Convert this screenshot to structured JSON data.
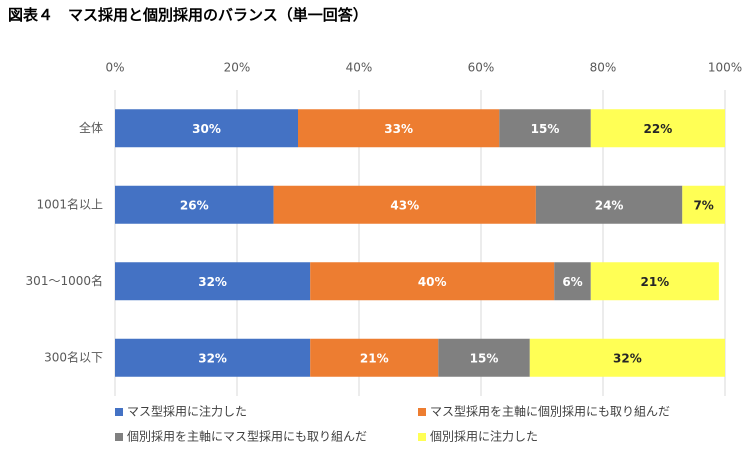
{
  "chart_data": {
    "type": "stacked-barh",
    "title": "図表４　マス採用と個別採用のバランス（単一回答）",
    "categories": [
      "全体",
      "1001名以上",
      "301～1000名",
      "300名以下"
    ],
    "series": [
      {
        "name": "マス型採用に注力した",
        "color": "#4472c4",
        "label_color": "#ffffff",
        "values": [
          30,
          26,
          32,
          32
        ],
        "value_labels": [
          "30%",
          "26%",
          "32%",
          "32%"
        ]
      },
      {
        "name": "マス型採用を主軸に個別採用にも取り組んだ",
        "color": "#ed7d31",
        "label_color": "#ffffff",
        "values": [
          33,
          43,
          40,
          21
        ],
        "value_labels": [
          "33%",
          "43%",
          "40%",
          "21%"
        ]
      },
      {
        "name": "個別採用を主軸にマス型採用にも取り組んだ",
        "color": "#808080",
        "label_color": "#ffffff",
        "values": [
          15,
          24,
          6,
          15
        ],
        "value_labels": [
          "15%",
          "24%",
          "6%",
          "15%"
        ]
      },
      {
        "name": "個別採用に注力した",
        "color": "#ffff55",
        "label_color": "#262626",
        "values": [
          22,
          7,
          21,
          32
        ],
        "value_labels": [
          "22%",
          "7%",
          "21%",
          "32%"
        ]
      }
    ],
    "xlim": [
      0,
      100
    ],
    "xticks": [
      {
        "value": 0,
        "label": "0%"
      },
      {
        "value": 20,
        "label": "20%"
      },
      {
        "value": 40,
        "label": "40%"
      },
      {
        "value": 60,
        "label": "60%"
      },
      {
        "value": 80,
        "label": "80%"
      },
      {
        "value": 100,
        "label": "100%"
      }
    ],
    "grid": true
  }
}
